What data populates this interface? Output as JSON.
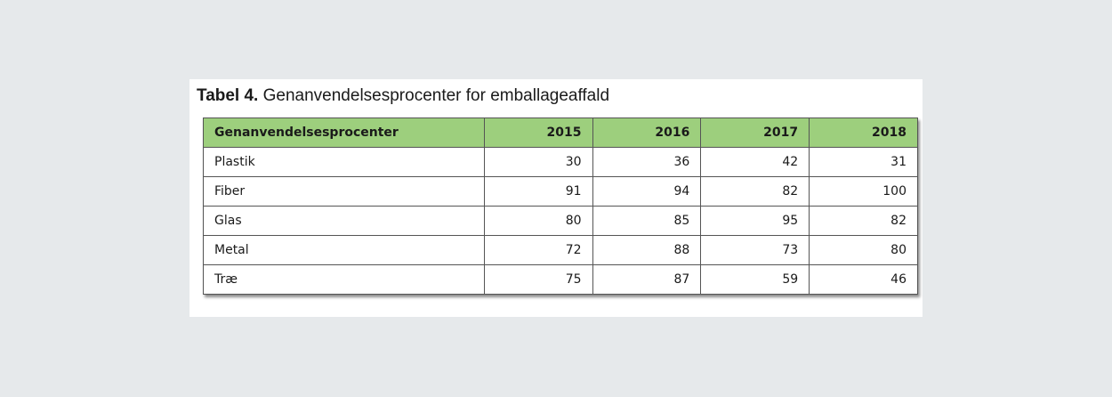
{
  "caption": {
    "lead": "Tabel 4.",
    "rest": "Genanvendelsesprocenter for emballageaffald"
  },
  "table": {
    "header": [
      "Genanvendelsesprocenter",
      "2015",
      "2016",
      "2017",
      "2018"
    ],
    "rows": [
      [
        "Plastik",
        "30",
        "36",
        "42",
        "31"
      ],
      [
        "Fiber",
        "91",
        "94",
        "82",
        "100"
      ],
      [
        "Glas",
        "80",
        "85",
        "95",
        "82"
      ],
      [
        "Metal",
        "72",
        "88",
        "73",
        "80"
      ],
      [
        "Træ",
        "75",
        "87",
        "59",
        "46"
      ]
    ]
  },
  "colors": {
    "header_fill": "#9dcf7d",
    "page_background": "#e6e9eb"
  }
}
